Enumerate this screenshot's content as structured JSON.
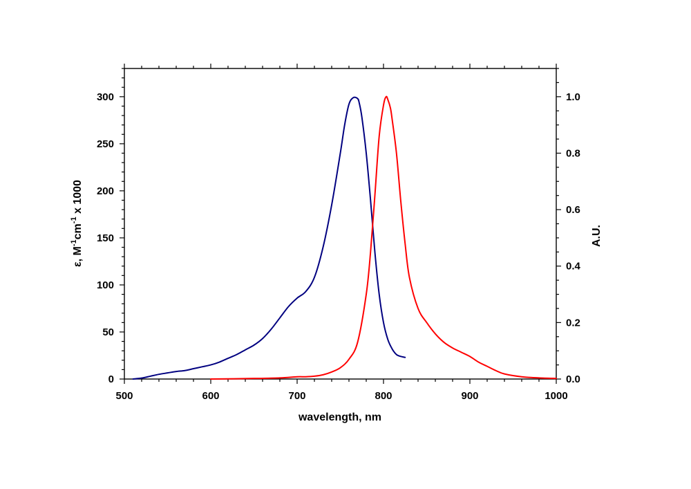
{
  "chart_data": {
    "type": "line",
    "xlabel": "wavelength, nm",
    "ylabel_left": {
      "base": "ε, M",
      "exp1": "-1",
      "mid": "cm",
      "exp2": "-1",
      "tail": " x 1000"
    },
    "ylabel_right": "A.U.",
    "xlim": [
      500,
      1000
    ],
    "ylim_left": [
      0,
      330
    ],
    "ylim_right": [
      0,
      1.1
    ],
    "x_ticks": [
      "500",
      "600",
      "700",
      "800",
      "900",
      "1000"
    ],
    "y_left_ticks": [
      "0",
      "50",
      "100",
      "150",
      "200",
      "250",
      "300"
    ],
    "y_right_ticks": [
      "0.0",
      "0.2",
      "0.4",
      "0.6",
      "0.8",
      "1.0"
    ],
    "grid": false,
    "colors": {
      "absorption": "#000080",
      "emission": "#ff0000"
    },
    "series": [
      {
        "axis": "left",
        "x": [
          510,
          520,
          530,
          540,
          550,
          560,
          570,
          580,
          590,
          600,
          610,
          620,
          630,
          640,
          650,
          660,
          670,
          680,
          690,
          700,
          710,
          720,
          730,
          740,
          750,
          755,
          760,
          765,
          770,
          772,
          775,
          780,
          785,
          790,
          795,
          800,
          805,
          810,
          815,
          820,
          825
        ],
        "y": [
          0,
          1,
          3,
          5,
          6.5,
          8,
          9,
          11,
          13,
          15,
          18,
          22,
          26,
          31,
          36,
          43,
          53,
          65,
          77,
          86,
          93,
          108,
          140,
          185,
          240,
          270,
          292,
          299,
          298,
          293,
          278,
          240,
          190,
          135,
          90,
          60,
          42,
          32,
          26,
          24,
          23
        ]
      },
      {
        "axis": "right",
        "x": [
          600,
          650,
          680,
          700,
          710,
          720,
          730,
          740,
          750,
          760,
          770,
          780,
          785,
          790,
          795,
          800,
          803,
          805,
          808,
          810,
          815,
          820,
          825,
          830,
          840,
          850,
          860,
          870,
          880,
          890,
          900,
          910,
          920,
          930,
          940,
          960,
          980,
          1000
        ],
        "y": [
          0,
          0.002,
          0.004,
          0.008,
          0.008,
          0.01,
          0.015,
          0.025,
          0.04,
          0.07,
          0.13,
          0.3,
          0.45,
          0.65,
          0.86,
          0.97,
          1.0,
          0.99,
          0.96,
          0.92,
          0.8,
          0.63,
          0.48,
          0.36,
          0.25,
          0.2,
          0.16,
          0.13,
          0.11,
          0.095,
          0.08,
          0.06,
          0.045,
          0.03,
          0.018,
          0.008,
          0.004,
          0.002
        ]
      }
    ]
  }
}
